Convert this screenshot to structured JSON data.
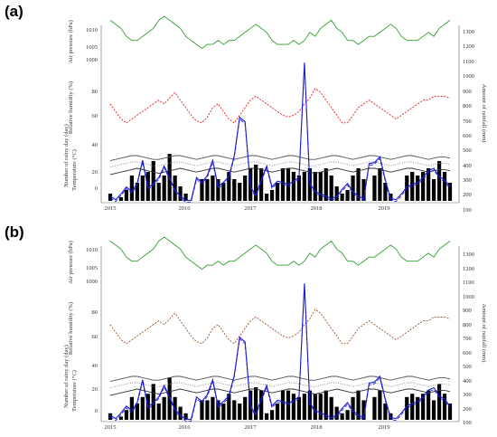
{
  "chart_data": [
    {
      "type": "line",
      "panel_label": "(a)",
      "x_ticks": [
        "2015",
        "2016",
        "2017",
        "2018",
        "2019"
      ],
      "left_axis_labels": [
        "Air pressure (hPa)",
        "Relative humidity (%)",
        "Number of rainy day (day)",
        "Temperature (°C)"
      ],
      "right_axis_label": "Amount of rainfall (mm)",
      "pressure_ticks": [
        "1010",
        "1005",
        "1000"
      ],
      "humidity_ticks": [
        "80",
        "60"
      ],
      "temp_ticks": [
        "40",
        "20",
        "0"
      ],
      "rain_ticks": [
        "1300",
        "1200",
        "1100",
        "1000",
        "900",
        "800",
        "700",
        "600",
        "500",
        "400",
        "300",
        "200",
        "100"
      ],
      "series": [
        {
          "color": "#2e9e2e",
          "values": [
            1014,
            1013,
            1012,
            1010,
            1009,
            1009,
            1010,
            1011,
            1012,
            1014,
            1015,
            1014,
            1013,
            1012,
            1010,
            1009,
            1008,
            1007,
            1008,
            1008,
            1009,
            1008,
            1009,
            1009,
            1010,
            1011,
            1012,
            1013,
            1012,
            1011,
            1009,
            1008,
            1008,
            1008,
            1009,
            1008,
            1009,
            1011,
            1010,
            1012,
            1013,
            1014,
            1012,
            1011,
            1009,
            1009,
            1008,
            1009,
            1010,
            1010,
            1011,
            1012,
            1013,
            1012,
            1010,
            1009,
            1009,
            1009,
            1010,
            1011,
            1010,
            1012,
            1013,
            1014
          ]
        },
        {
          "color": "#e02020",
          "values": [
            72,
            68,
            64,
            62,
            64,
            66,
            68,
            70,
            72,
            74,
            72,
            75,
            78,
            74,
            70,
            66,
            63,
            62,
            65,
            70,
            72,
            68,
            64,
            62,
            66,
            70,
            74,
            76,
            74,
            72,
            70,
            68,
            66,
            65,
            66,
            68,
            72,
            75,
            80,
            78,
            74,
            70,
            66,
            62,
            62,
            66,
            70,
            72,
            74,
            72,
            70,
            68,
            66,
            64,
            66,
            68,
            70,
            72,
            74,
            74,
            76,
            76,
            76,
            75
          ]
        },
        {
          "color": "#555555",
          "values": [
            26,
            27,
            28,
            29,
            30,
            30,
            29,
            28,
            27,
            27,
            28,
            29,
            30,
            30,
            29,
            28,
            27,
            28,
            29,
            30,
            30,
            29,
            28,
            27,
            28,
            29,
            30,
            30,
            29,
            28,
            27,
            28,
            29,
            30,
            30,
            29,
            28,
            27,
            27,
            28,
            29,
            30,
            30,
            29,
            28,
            27,
            28,
            29,
            30,
            30,
            29,
            28,
            27,
            28,
            29,
            30,
            30,
            29,
            28,
            27,
            28,
            29,
            29,
            28
          ]
        },
        {
          "color": "#888888",
          "values": [
            21,
            22,
            23,
            24,
            25,
            25,
            24,
            23,
            22,
            22,
            23,
            24,
            25,
            25,
            24,
            23,
            22,
            23,
            24,
            25,
            25,
            24,
            23,
            22,
            23,
            24,
            25,
            25,
            24,
            23,
            22,
            23,
            24,
            25,
            25,
            24,
            23,
            22,
            22,
            23,
            24,
            25,
            25,
            24,
            23,
            22,
            23,
            24,
            25,
            25,
            24,
            23,
            22,
            23,
            24,
            25,
            25,
            24,
            23,
            22,
            23,
            24,
            24,
            23
          ]
        },
        {
          "color": "#333333",
          "values": [
            15,
            16,
            17,
            18,
            19,
            20,
            19,
            18,
            17,
            16,
            17,
            18,
            19,
            20,
            19,
            18,
            17,
            18,
            19,
            20,
            20,
            19,
            18,
            17,
            18,
            19,
            20,
            20,
            19,
            18,
            17,
            18,
            19,
            20,
            20,
            19,
            18,
            17,
            16,
            17,
            18,
            19,
            20,
            19,
            18,
            17,
            18,
            19,
            20,
            20,
            19,
            18,
            17,
            18,
            19,
            20,
            20,
            19,
            18,
            17,
            18,
            19,
            19,
            18
          ]
        },
        {
          "color": "#1a1ad0",
          "values": [
            40,
            10,
            60,
            120,
            80,
            150,
            350,
            110,
            150,
            200,
            300,
            200,
            90,
            40,
            5,
            5,
            200,
            160,
            220,
            350,
            120,
            160,
            210,
            390,
            720,
            680,
            120,
            50,
            180,
            300,
            120,
            170,
            160,
            140,
            170,
            200,
            1190,
            150,
            80,
            60,
            40,
            20,
            40,
            100,
            150,
            80,
            40,
            20,
            320,
            330,
            380,
            180,
            20,
            10,
            60,
            120,
            140,
            160,
            200,
            260,
            280,
            210,
            180,
            120
          ]
        }
      ],
      "bars": [
        2,
        0,
        1,
        3,
        7,
        5,
        7,
        8,
        11,
        5,
        7,
        13,
        7,
        4,
        2,
        0,
        0,
        6,
        6,
        7,
        6,
        5,
        8,
        6,
        5,
        7,
        9,
        10,
        9,
        2,
        3,
        5,
        9,
        9,
        8,
        7,
        8,
        9,
        8,
        8,
        9,
        7,
        4,
        2,
        3,
        7,
        9,
        6,
        0,
        7,
        9,
        5,
        2,
        0,
        0,
        7,
        8,
        7,
        8,
        9,
        6,
        11,
        8,
        5
      ]
    },
    {
      "type": "line",
      "panel_label": "(b)",
      "x_ticks": [
        "2015",
        "2016",
        "2017",
        "2018",
        "2019"
      ],
      "left_axis_labels": [
        "Air pressure (hPa)",
        "Relative humidity (%)",
        "Number of rainy day (day)",
        "Temperature (°C)"
      ],
      "right_axis_label": "Amount of rainfall (mm)",
      "pressure_ticks": [
        "1010",
        "1005",
        "1000"
      ],
      "humidity_ticks": [
        "80",
        "60"
      ],
      "temp_ticks": [
        "40",
        "20",
        "0"
      ],
      "rain_ticks": [
        "1300",
        "1200",
        "1100",
        "1000",
        "900",
        "800",
        "700",
        "600",
        "500",
        "400",
        "300",
        "200",
        "100"
      ],
      "series": [
        {
          "color": "#2e9e2e",
          "values": [
            1014,
            1013,
            1012,
            1010,
            1009,
            1009,
            1010,
            1011,
            1012,
            1014,
            1015,
            1014,
            1013,
            1012,
            1010,
            1009,
            1008,
            1007,
            1008,
            1008,
            1009,
            1008,
            1009,
            1009,
            1010,
            1011,
            1012,
            1013,
            1012,
            1011,
            1009,
            1008,
            1008,
            1008,
            1009,
            1008,
            1009,
            1011,
            1010,
            1012,
            1013,
            1014,
            1012,
            1011,
            1009,
            1009,
            1008,
            1009,
            1010,
            1010,
            1011,
            1012,
            1013,
            1012,
            1010,
            1009,
            1009,
            1009,
            1010,
            1011,
            1010,
            1012,
            1013,
            1014
          ]
        },
        {
          "color": "#a0522d",
          "values": [
            72,
            68,
            64,
            62,
            64,
            66,
            68,
            70,
            72,
            74,
            72,
            75,
            78,
            74,
            70,
            66,
            63,
            62,
            65,
            70,
            72,
            68,
            64,
            62,
            66,
            70,
            74,
            76,
            74,
            72,
            70,
            68,
            66,
            65,
            66,
            68,
            72,
            75,
            80,
            78,
            74,
            70,
            66,
            62,
            62,
            66,
            70,
            72,
            74,
            72,
            70,
            68,
            66,
            64,
            66,
            68,
            70,
            72,
            74,
            74,
            76,
            76,
            76,
            75
          ]
        },
        {
          "color": "#555555",
          "values": [
            26,
            27,
            28,
            29,
            30,
            30,
            29,
            28,
            27,
            27,
            28,
            29,
            30,
            30,
            29,
            28,
            27,
            28,
            29,
            30,
            30,
            29,
            28,
            27,
            28,
            29,
            30,
            30,
            29,
            28,
            27,
            28,
            29,
            30,
            30,
            29,
            28,
            27,
            27,
            28,
            29,
            30,
            30,
            29,
            28,
            27,
            28,
            29,
            30,
            30,
            29,
            28,
            27,
            28,
            29,
            30,
            30,
            29,
            28,
            27,
            28,
            29,
            29,
            28
          ]
        },
        {
          "color": "#888888",
          "values": [
            21,
            22,
            23,
            24,
            25,
            25,
            24,
            23,
            22,
            22,
            23,
            24,
            25,
            25,
            24,
            23,
            22,
            23,
            24,
            25,
            25,
            24,
            23,
            22,
            23,
            24,
            25,
            25,
            24,
            23,
            22,
            23,
            24,
            25,
            25,
            24,
            23,
            22,
            22,
            23,
            24,
            25,
            25,
            24,
            23,
            22,
            23,
            24,
            25,
            25,
            24,
            23,
            22,
            23,
            24,
            25,
            25,
            24,
            23,
            22,
            23,
            24,
            24,
            23
          ]
        },
        {
          "color": "#333333",
          "values": [
            15,
            16,
            17,
            18,
            19,
            20,
            19,
            18,
            17,
            16,
            17,
            18,
            19,
            20,
            19,
            18,
            17,
            18,
            19,
            20,
            20,
            19,
            18,
            17,
            18,
            19,
            20,
            20,
            19,
            18,
            17,
            18,
            19,
            20,
            20,
            19,
            18,
            17,
            16,
            17,
            18,
            19,
            20,
            19,
            18,
            17,
            18,
            19,
            20,
            20,
            19,
            18,
            17,
            18,
            19,
            20,
            20,
            19,
            18,
            17,
            18,
            19,
            19,
            18
          ]
        },
        {
          "color": "#1a1ad0",
          "values": [
            40,
            10,
            60,
            120,
            80,
            150,
            350,
            110,
            150,
            200,
            300,
            200,
            90,
            40,
            5,
            5,
            200,
            160,
            220,
            350,
            120,
            160,
            210,
            390,
            720,
            680,
            120,
            50,
            180,
            300,
            120,
            170,
            160,
            140,
            170,
            200,
            1190,
            150,
            80,
            60,
            40,
            20,
            40,
            100,
            150,
            80,
            40,
            20,
            320,
            330,
            380,
            180,
            20,
            10,
            60,
            120,
            140,
            160,
            200,
            260,
            280,
            210,
            180,
            120
          ]
        }
      ],
      "bars": [
        2,
        0,
        1,
        3,
        7,
        5,
        7,
        8,
        11,
        5,
        7,
        13,
        7,
        4,
        2,
        0,
        0,
        6,
        6,
        7,
        6,
        5,
        8,
        6,
        5,
        7,
        9,
        10,
        9,
        2,
        3,
        5,
        9,
        9,
        8,
        7,
        8,
        9,
        8,
        8,
        9,
        7,
        4,
        2,
        3,
        7,
        9,
        6,
        0,
        7,
        9,
        5,
        2,
        0,
        0,
        7,
        8,
        7,
        8,
        9,
        6,
        11,
        8,
        5
      ]
    }
  ]
}
